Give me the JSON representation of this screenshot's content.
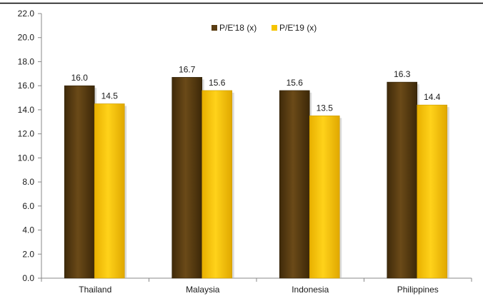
{
  "chart_data": {
    "type": "bar",
    "categories": [
      "Thailand",
      "Malaysia",
      "Indonesia",
      "Philippines"
    ],
    "series": [
      {
        "name": "P/E'18 (x)",
        "values": [
          16.0,
          16.7,
          15.6,
          16.3
        ],
        "color": "#5a3d12"
      },
      {
        "name": "P/E'19 (x)",
        "values": [
          14.5,
          15.6,
          13.5,
          14.4
        ],
        "color": "#f5c400"
      }
    ],
    "yticks": [
      "0.0",
      "2.0",
      "4.0",
      "6.0",
      "8.0",
      "10.0",
      "12.0",
      "14.0",
      "16.0",
      "18.0",
      "20.0",
      "22.0"
    ],
    "data_labels": [
      [
        "16.0",
        "16.7",
        "15.6",
        "16.3"
      ],
      [
        "14.5",
        "15.6",
        "13.5",
        "14.4"
      ]
    ],
    "ylim": [
      0,
      22
    ],
    "grid": false,
    "legend_position": "top-center",
    "frame_color": "#000000"
  }
}
